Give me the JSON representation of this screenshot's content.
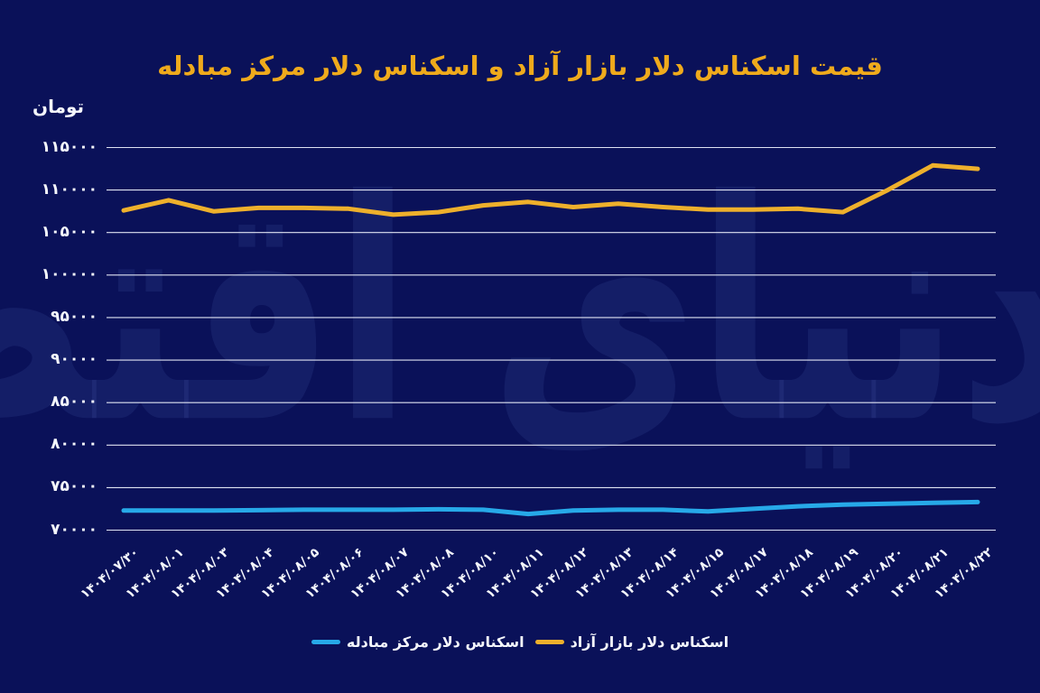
{
  "title": "قیمت اسکناس دلار بازار آزاد و اسکناس دلار مرکز مبادله",
  "y_axis_unit": "تومان",
  "watermark": "دنیای اقتصاد",
  "colors": {
    "background": "#0a1159",
    "grid": "#dfe3f2",
    "title": "#efaa1c",
    "text": "#f4f6fc",
    "free_market_line": "#eeb02c",
    "exchange_center_line": "#27a9e8",
    "watermark": "rgba(120,150,240,0.10)"
  },
  "legend": [
    {
      "label": "اسکناس دلار مرکز مبادله",
      "color": "#27a9e8"
    },
    {
      "label": "اسکناس دلار بازار آزاد",
      "color": "#eeb02c"
    }
  ],
  "chart_data": {
    "type": "line",
    "title": "قیمت اسکناس دلار بازار آزاد و اسکناس دلار مرکز مبادله",
    "ylabel": "تومان",
    "xlabel": "",
    "grid": true,
    "legend_position": "bottom",
    "ylim": [
      70000,
      115000
    ],
    "ytick_step": 5000,
    "ytick_labels": [
      "۱۱۵۰۰۰",
      "۱۱۰۰۰۰",
      "۱۰۵۰۰۰",
      "۱۰۰۰۰۰",
      "۹۵۰۰۰",
      "۹۰۰۰۰",
      "۸۵۰۰۰",
      "۸۰۰۰۰",
      "۷۵۰۰۰",
      "۷۰۰۰۰"
    ],
    "categories": [
      "۱۴۰۴/۰۷/۳۰",
      "۱۴۰۴/۰۸/۰۱",
      "۱۴۰۴/۰۸/۰۳",
      "۱۴۰۴/۰۸/۰۴",
      "۱۴۰۴/۰۸/۰۵",
      "۱۴۰۴/۰۸/۰۶",
      "۱۴۰۴/۰۸/۰۷",
      "۱۴۰۴/۰۸/۰۸",
      "۱۴۰۴/۰۸/۱۰",
      "۱۴۰۴/۰۸/۱۱",
      "۱۴۰۴/۰۸/۱۲",
      "۱۴۰۴/۰۸/۱۳",
      "۱۴۰۴/۰۸/۱۴",
      "۱۴۰۴/۰۸/۱۵",
      "۱۴۰۴/۰۸/۱۷",
      "۱۴۰۴/۰۸/۱۸",
      "۱۴۰۴/۰۸/۱۹",
      "۱۴۰۴/۰۸/۲۰",
      "۱۴۰۴/۰۸/۲۱",
      "۱۴۰۴/۰۸/۲۲"
    ],
    "series": [
      {
        "name": "اسکناس دلار بازار آزاد",
        "slug": "free-market-dollar",
        "color": "#eeb02c",
        "values": [
          107600,
          108800,
          107500,
          107900,
          107900,
          107800,
          107100,
          107400,
          108200,
          108600,
          108000,
          108400,
          108000,
          107700,
          107700,
          107800,
          107400,
          110000,
          112900,
          112500
        ]
      },
      {
        "name": "اسکناس دلار مرکز مبادله",
        "slug": "exchange-center-dollar",
        "color": "#27a9e8",
        "values": [
          72300,
          72300,
          72300,
          72350,
          72400,
          72400,
          72400,
          72450,
          72400,
          71900,
          72300,
          72400,
          72400,
          72200,
          72500,
          72800,
          73000,
          73100,
          73200,
          73300
        ]
      }
    ]
  }
}
